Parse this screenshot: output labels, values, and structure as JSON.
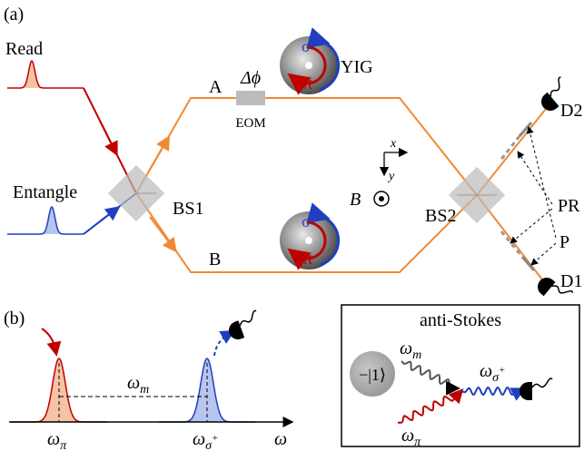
{
  "panel_a": {
    "label": "(a)",
    "read": "Read",
    "entangle": "Entangle",
    "bs1": "BS1",
    "bs2": "BS2",
    "arm_a": "A",
    "arm_b": "B",
    "phase": "Δϕ",
    "eom": "EOM",
    "yig": "YIG",
    "sigma_upper": {
      "base": "σ",
      "sup": "+"
    },
    "pi_upper": "π",
    "sigma_lower": {
      "base": "σ",
      "sup": "+"
    },
    "pi_lower": "π",
    "axis_x": "x",
    "axis_y": "y",
    "field": "B⃗",
    "detector_2": "D2",
    "detector_1": "D1",
    "pr": "PR",
    "p": "P"
  },
  "panel_b": {
    "label": "(b)",
    "omega_m": {
      "base": "ω",
      "sub": "m"
    },
    "omega_pi": {
      "base": "ω",
      "sub": "π"
    },
    "omega_sigma": {
      "base": "ω",
      "sub": "σ",
      "sup": "+"
    },
    "omega_axis": "ω",
    "inset": {
      "title": "anti-Stokes",
      "state": "−|1⟩",
      "omega_m": {
        "base": "ω",
        "sub": "m"
      },
      "omega_sigma": {
        "base": "ω",
        "sub": "σ",
        "sup": "+"
      },
      "omega_pi": {
        "base": "ω",
        "sub": "π"
      }
    }
  }
}
